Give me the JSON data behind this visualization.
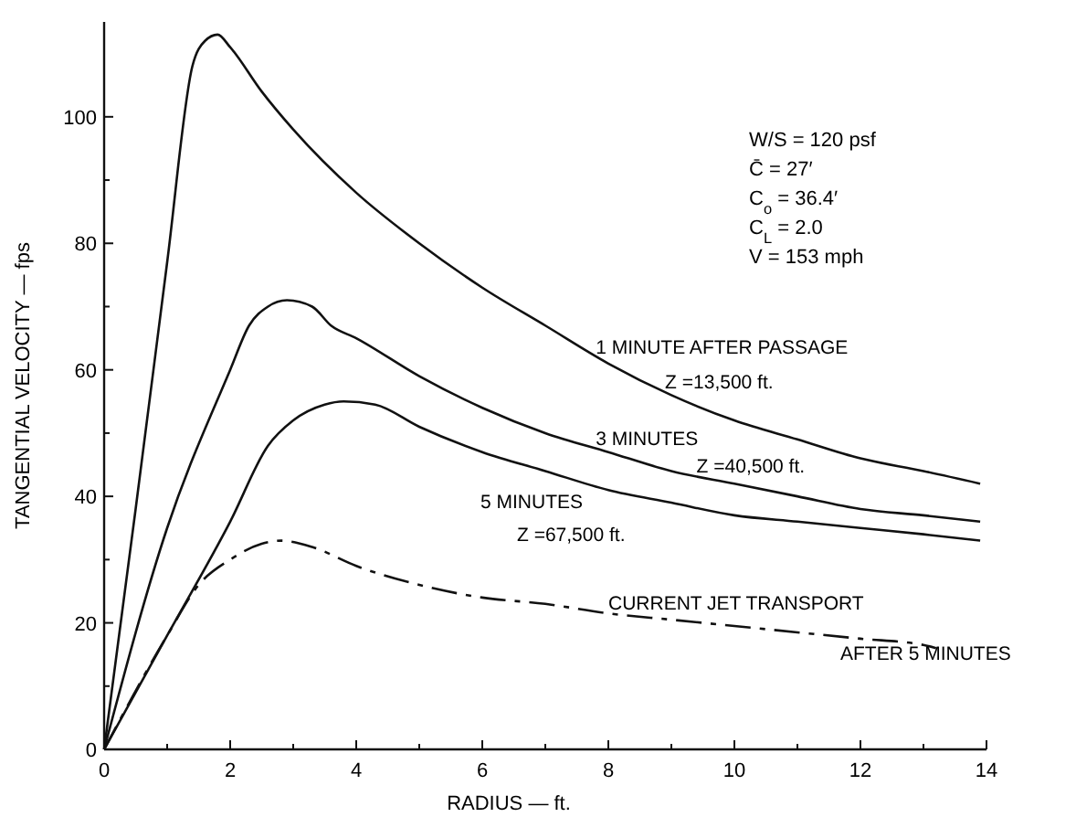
{
  "chart_data": {
    "type": "line",
    "xlabel": "RADIUS — ft.",
    "ylabel": "TANGENTIAL VELOCITY — fps",
    "xlim": [
      0,
      14
    ],
    "ylim": [
      0,
      115
    ],
    "xticks": [
      0,
      {
        "value": 1,
        "label": null
      },
      2,
      {
        "value": 3,
        "label": null
      },
      4,
      {
        "value": 5,
        "label": null
      },
      6,
      {
        "value": 7,
        "label": null
      },
      8,
      {
        "value": 9,
        "label": null
      },
      10,
      {
        "value": 11,
        "label": null
      },
      12,
      {
        "value": 13,
        "label": null
      },
      14
    ],
    "yticks": [
      0,
      {
        "value": 10,
        "label": null
      },
      20,
      {
        "value": 30,
        "label": null
      },
      40,
      {
        "value": 50,
        "label": null
      },
      60,
      {
        "value": 70,
        "label": null
      },
      80,
      {
        "value": 90,
        "label": null
      },
      100
    ],
    "grid": false,
    "marker": "none",
    "series": [
      {
        "color": "#111111",
        "line_style": "solid",
        "x": [
          0,
          0.5,
          1,
          1.4,
          1.6,
          1.8,
          2,
          2.5,
          3,
          4,
          5,
          6,
          7,
          8,
          9,
          10,
          11,
          12,
          13,
          13.9
        ],
        "values": [
          0,
          38,
          77,
          108,
          112,
          113,
          111,
          104,
          98,
          88,
          80,
          73,
          67,
          61,
          56,
          52,
          49,
          46,
          44,
          42
        ]
      },
      {
        "color": "#111111",
        "line_style": "solid",
        "x": [
          0,
          1,
          2,
          2.3,
          2.6,
          2.9,
          3.3,
          3.6,
          4,
          5,
          6,
          7,
          8,
          9,
          10,
          11,
          12,
          13,
          13.9
        ],
        "values": [
          0,
          35,
          60,
          67,
          70,
          71,
          70,
          67,
          65,
          59,
          54,
          50,
          47,
          44,
          42,
          40,
          38,
          37,
          36
        ]
      },
      {
        "color": "#111111",
        "line_style": "solid",
        "x": [
          0,
          1,
          2,
          2.6,
          3,
          3.5,
          3.8,
          4.3,
          5,
          6,
          7,
          8,
          9,
          10,
          11,
          12,
          13,
          13.9
        ],
        "values": [
          0,
          18,
          36,
          48,
          52,
          54.5,
          55,
          54.5,
          51,
          47,
          44,
          41,
          39,
          37,
          36,
          35,
          34,
          33
        ]
      },
      {
        "color": "#111111",
        "line_style": "dashed",
        "x": [
          0,
          1,
          1.5,
          2,
          2.5,
          2.8,
          3.3,
          4,
          5,
          6,
          7,
          8,
          9,
          10,
          11,
          12,
          13,
          13.2
        ],
        "values": [
          0,
          18,
          26,
          30,
          32.5,
          33,
          32,
          29,
          26,
          24,
          23,
          21.5,
          20.5,
          19.5,
          18.5,
          17.5,
          16.5,
          16
        ]
      }
    ],
    "annotations": [
      "W/S = 120 psf",
      "C̄ = 27′",
      "C$_{o}$ = 36.4′",
      "C$_{L}$ = 2.0",
      "V = 153 mph",
      "5 MINUTES",
      "Z =67,500 ft.",
      "AFTER 5 MINUTES",
      {
        "text": "1 MINUTE AFTER PASSAGE",
        "x": 7.8,
        "y": 62
      },
      {
        "text": "Z =13,500 ft.",
        "x": 8.9,
        "y": 56.5
      },
      {
        "text": "3 MINUTES",
        "x": 7.8,
        "y": 47.6
      },
      {
        "text": "Z =40,500 ft.",
        "x": 9.4,
        "y": 43.2
      },
      {
        "text": "CURRENT JET TRANSPORT",
        "x": 8.0,
        "y": 21.5
      }
    ]
  }
}
